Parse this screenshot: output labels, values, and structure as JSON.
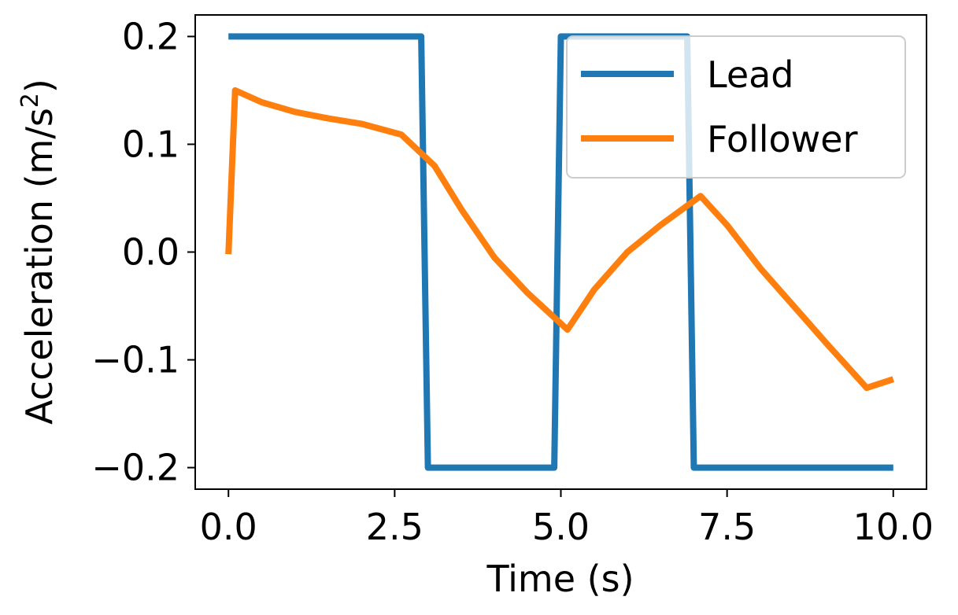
{
  "chart_data": {
    "type": "line",
    "title": "",
    "xlabel": "Time (s)",
    "ylabel": {
      "prefix": "Acceleration (m/s",
      "sup": "2",
      "suffix": ")"
    },
    "xlim": [
      -0.5,
      10.5
    ],
    "ylim": [
      -0.22,
      0.22
    ],
    "x_ticks": [
      0.0,
      2.5,
      5.0,
      7.5,
      10.0
    ],
    "x_tick_labels": [
      "0.0",
      "2.5",
      "5.0",
      "7.5",
      "10.0"
    ],
    "y_ticks": [
      0.2,
      0.1,
      0.0,
      -0.1,
      -0.2
    ],
    "y_tick_labels": [
      "0.2",
      "0.1",
      "0.0",
      "−0.1",
      "−0.2"
    ],
    "grid": false,
    "legend_position": "top-right",
    "series": [
      {
        "name": "Lead",
        "color": "#1f77b4",
        "x": [
          0.0,
          2.9,
          3.0,
          4.9,
          5.0,
          6.9,
          7.0,
          10.0
        ],
        "y": [
          0.2,
          0.2,
          -0.2,
          -0.2,
          0.2,
          0.2,
          -0.2,
          -0.2
        ]
      },
      {
        "name": "Follower",
        "color": "#ff7f0e",
        "x": [
          0.0,
          0.1,
          0.5,
          1.0,
          1.5,
          2.0,
          2.6,
          3.1,
          3.5,
          4.0,
          4.5,
          5.1,
          5.5,
          6.0,
          6.5,
          7.1,
          7.5,
          8.0,
          8.5,
          9.0,
          9.6,
          10.0
        ],
        "y": [
          -0.002,
          0.15,
          0.139,
          0.13,
          0.124,
          0.119,
          0.109,
          0.08,
          0.04,
          -0.005,
          -0.038,
          -0.072,
          -0.035,
          0.0,
          0.025,
          0.052,
          0.025,
          -0.015,
          -0.05,
          -0.085,
          -0.126,
          -0.118
        ]
      }
    ]
  }
}
